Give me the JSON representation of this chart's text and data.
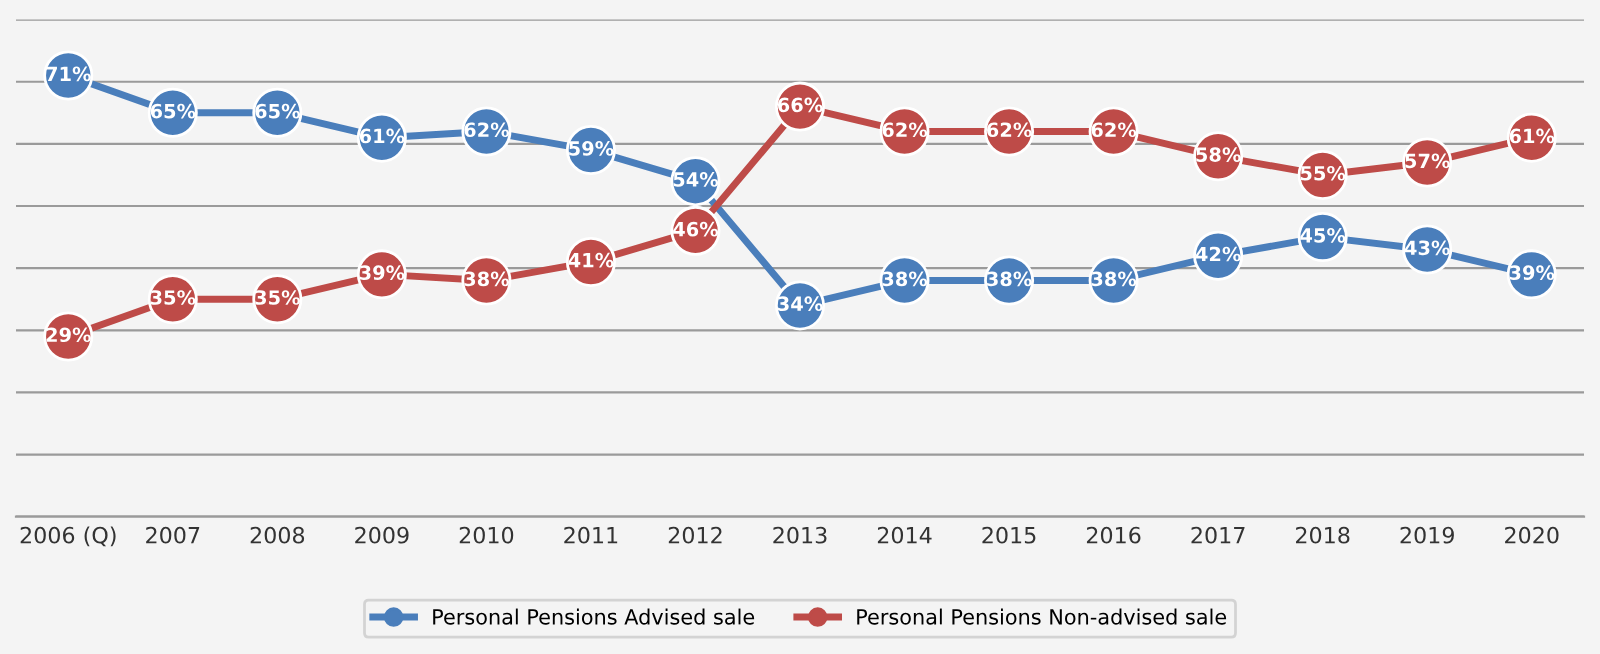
{
  "chart_data": {
    "type": "line",
    "categories": [
      "2006 (Q)",
      "2007",
      "2008",
      "2009",
      "2010",
      "2011",
      "2012",
      "2013",
      "2014",
      "2015",
      "2016",
      "2017",
      "2018",
      "2019",
      "2020"
    ],
    "series": [
      {
        "name": "Personal Pensions Advised sale",
        "color": "#4a7ebb",
        "values": [
          71,
          65,
          65,
          61,
          62,
          59,
          54,
          34,
          38,
          38,
          38,
          42,
          45,
          43,
          39
        ],
        "value_labels": [
          "71%",
          "65%",
          "65%",
          "61%",
          "62%",
          "59%",
          "54%",
          "34%",
          "38%",
          "38%",
          "38%",
          "42%",
          "45%",
          "43%",
          "39%"
        ]
      },
      {
        "name": "Personal Pensions Non-advised sale",
        "color": "#be4b48",
        "values": [
          29,
          35,
          35,
          39,
          38,
          41,
          46,
          66,
          62,
          62,
          62,
          58,
          55,
          57,
          61
        ],
        "value_labels": [
          "29%",
          "35%",
          "35%",
          "39%",
          "38%",
          "41%",
          "46%",
          "66%",
          "62%",
          "62%",
          "62%",
          "58%",
          "55%",
          "57%",
          "61%"
        ]
      }
    ],
    "ylim": [
      0,
      80
    ],
    "yticks": [
      {
        "value": 0,
        "label": null
      },
      {
        "value": 10,
        "label": null
      },
      {
        "value": 20,
        "label": null
      },
      {
        "value": 30,
        "label": null
      },
      {
        "value": 40,
        "label": null
      },
      {
        "value": 50,
        "label": null
      },
      {
        "value": 60,
        "label": null
      },
      {
        "value": 70,
        "label": null
      },
      {
        "value": 80,
        "label": null
      }
    ],
    "tick_labels": "x",
    "grid": "y",
    "legend": "bottom",
    "marker": "circle",
    "line_style": "solid"
  }
}
